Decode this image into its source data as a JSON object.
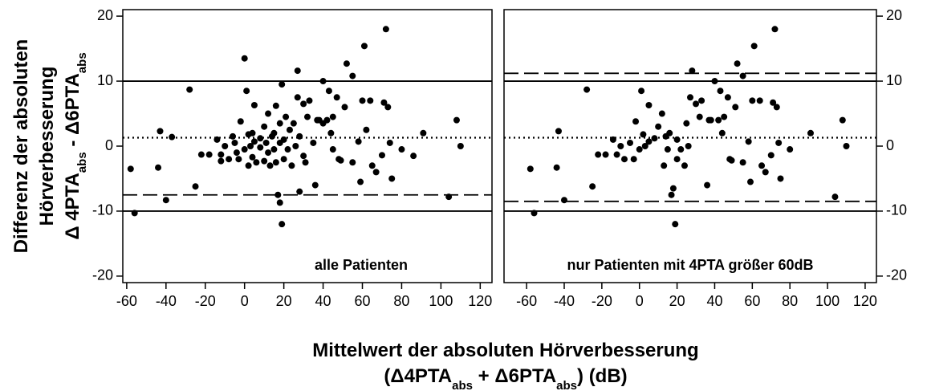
{
  "y_label": [
    [
      {
        "text": "Differenz der absoluten"
      }
    ],
    [
      {
        "text": "Hörverbesserung"
      }
    ],
    [
      {
        "text": "Δ 4PTA"
      },
      {
        "text": "abs",
        "sub": true
      },
      {
        "text": " - Δ6PTA"
      },
      {
        "text": "abs",
        "sub": true
      }
    ]
  ],
  "x_label": [
    [
      {
        "text": "Mittelwert der absoluten Hörverbesserung"
      }
    ],
    [
      {
        "text": "(Δ4PTA"
      },
      {
        "text": "abs",
        "sub": true
      },
      {
        "text": " + Δ6PTA"
      },
      {
        "text": "abs",
        "sub": true
      },
      {
        "text": ") (dB)"
      }
    ]
  ],
  "chart_data": [
    {
      "type": "scatter",
      "annotation": "alle Patienten",
      "color": "#000000",
      "yaxis_side": "left",
      "xlim": [
        -62,
        126
      ],
      "ylim": [
        -21,
        21
      ],
      "xticks": [
        -60,
        -40,
        -20,
        0,
        20,
        40,
        60,
        80,
        100,
        120
      ],
      "yticks": [
        -20,
        -10,
        0,
        10,
        20
      ],
      "lines": [
        {
          "value": 10,
          "style": "solid"
        },
        {
          "value": -10,
          "style": "solid"
        },
        {
          "value": 1.3,
          "style": "dotted"
        },
        {
          "value": -7.5,
          "style": "dashed"
        }
      ],
      "x": [
        -58,
        -56,
        -43,
        -44,
        -40,
        -37,
        -28,
        -25,
        -22,
        -18,
        -14,
        -12,
        -12,
        -10,
        -8,
        -6,
        -5,
        -4,
        -3,
        -2,
        0,
        0,
        1,
        2,
        2,
        3,
        4,
        4,
        5,
        5,
        6,
        8,
        8,
        10,
        10,
        11,
        12,
        12,
        13,
        14,
        15,
        15,
        16,
        16,
        17,
        18,
        18,
        18,
        19,
        19,
        20,
        20,
        21,
        22,
        23,
        24,
        25,
        26,
        27,
        27,
        28,
        28,
        30,
        30,
        31,
        32,
        33,
        35,
        36,
        37,
        38,
        40,
        40,
        42,
        43,
        44,
        45,
        45,
        47,
        48,
        49,
        51,
        52,
        55,
        55,
        58,
        59,
        60,
        61,
        62,
        64,
        65,
        67,
        70,
        71,
        72,
        73,
        74,
        75,
        80,
        86,
        91,
        104,
        108,
        110
      ],
      "y": [
        -3.5,
        -10.3,
        2.3,
        -3.3,
        -8.3,
        1.4,
        8.7,
        -6.2,
        -1.3,
        -1.3,
        1,
        -1.3,
        -2.3,
        0,
        -2,
        1.5,
        0.5,
        -1,
        -2,
        3.8,
        13.5,
        -0.5,
        8.5,
        1.8,
        -3,
        0,
        2,
        -1.7,
        0.7,
        6.3,
        -2.5,
        1.2,
        -0.2,
        3,
        -2.3,
        0.5,
        5,
        -1,
        -3,
        1.5,
        -0.5,
        2,
        6.2,
        -2.5,
        -7.5,
        -8.7,
        3.5,
        0.5,
        -12,
        9.5,
        -2,
        1,
        4.5,
        -0.5,
        2.5,
        -3,
        3.5,
        0,
        7.5,
        11.6,
        -7,
        1.5,
        6.5,
        -1.5,
        -2.5,
        4.5,
        7,
        0.5,
        -6,
        4,
        4,
        10,
        3.5,
        4,
        8.5,
        2,
        4.5,
        -0.5,
        7.5,
        -2,
        -2.2,
        6,
        12.7,
        10.8,
        -2.5,
        0.7,
        -5.5,
        7,
        15.4,
        2.5,
        7,
        -3,
        -4,
        -1.4,
        6.7,
        18,
        6,
        0.5,
        -5,
        -0.5,
        -1.5,
        2,
        -7.8,
        4,
        0
      ]
    },
    {
      "type": "scatter",
      "annotation": "nur Patienten mit 4PTA größer 60dB",
      "color": "#000000",
      "yaxis_side": "right",
      "xlim": [
        -72,
        126
      ],
      "ylim": [
        -21,
        21
      ],
      "xticks": [
        -60,
        -40,
        -20,
        0,
        20,
        40,
        60,
        80,
        100,
        120
      ],
      "yticks": [
        -20,
        -10,
        0,
        10,
        20
      ],
      "lines": [
        {
          "value": 10,
          "style": "solid"
        },
        {
          "value": -10,
          "style": "solid"
        },
        {
          "value": 1.3,
          "style": "dotted"
        },
        {
          "value": 11.2,
          "style": "dashed"
        },
        {
          "value": -8.5,
          "style": "dashed"
        }
      ],
      "x": [
        -58,
        -56,
        -43,
        -44,
        -40,
        -28,
        -25,
        -22,
        -18,
        -14,
        -12,
        -10,
        -8,
        -5,
        -3,
        -2,
        0,
        1,
        2,
        3,
        5,
        5,
        8,
        10,
        12,
        13,
        14,
        15,
        16,
        17,
        18,
        19,
        20,
        20,
        22,
        24,
        25,
        26,
        27,
        28,
        30,
        32,
        33,
        36,
        37,
        38,
        40,
        42,
        43,
        44,
        45,
        47,
        48,
        49,
        51,
        52,
        55,
        55,
        58,
        59,
        60,
        61,
        64,
        65,
        67,
        70,
        71,
        72,
        73,
        74,
        75,
        80,
        91,
        104,
        108,
        110
      ],
      "y": [
        -3.5,
        -10.3,
        2.3,
        -3.3,
        -8.3,
        8.7,
        -6.2,
        -1.3,
        -1.3,
        1,
        -1.3,
        0,
        -2,
        0.5,
        -2,
        3.8,
        -0.5,
        8.5,
        1.8,
        0,
        0.7,
        6.3,
        1.2,
        3,
        5,
        -3,
        1.5,
        -0.5,
        2,
        -7.5,
        -6.5,
        -12,
        -2,
        1,
        -0.5,
        -3,
        3.5,
        0,
        7.5,
        11.6,
        6.5,
        4.5,
        7,
        -6,
        4,
        4,
        10,
        4,
        8.5,
        2,
        4.5,
        7.5,
        -2,
        -2.2,
        6,
        12.7,
        10.8,
        -2.5,
        0.7,
        -5.5,
        7,
        15.4,
        7,
        -3,
        -4,
        -1.4,
        6.7,
        18,
        6,
        0.5,
        -5,
        -0.5,
        2,
        -7.8,
        4,
        0
      ]
    }
  ]
}
